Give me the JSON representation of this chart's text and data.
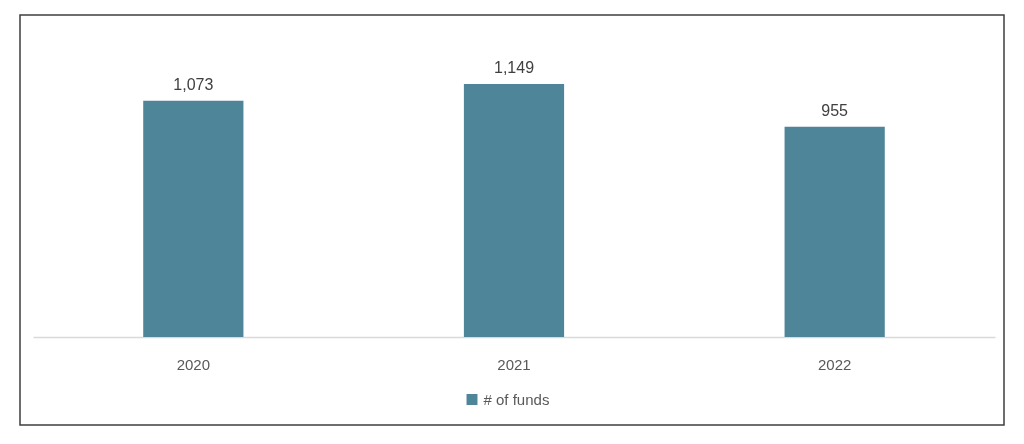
{
  "chart_data": {
    "type": "bar",
    "categories": [
      "2020",
      "2021",
      "2022"
    ],
    "series": [
      {
        "name": "# of funds",
        "color": "#4e8599",
        "values": [
          1073,
          1149,
          955
        ],
        "value_labels": [
          "1,073",
          "1,149",
          "955"
        ]
      }
    ],
    "legend": "bottom",
    "tick_labels": "x"
  }
}
